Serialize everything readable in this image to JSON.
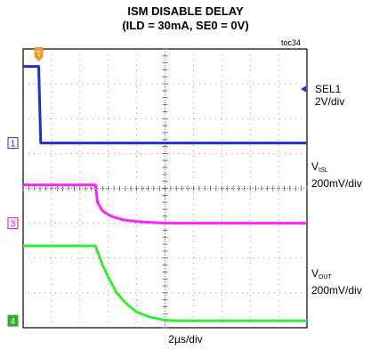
{
  "title_line1": "ISM DISABLE DELAY",
  "title_line2": "(ILD = 30mA, SE0 = 0V)",
  "figure_id": "toc34",
  "x_scale_label": "2µs/div",
  "trigger_marker": "T",
  "channel_markers": [
    {
      "label": "1",
      "color": "#2a2ad8"
    },
    {
      "label": "3",
      "color": "#e200e2"
    },
    {
      "label": "4",
      "color": "#2ab02a"
    }
  ],
  "trace_labels": {
    "sel1": {
      "name": "SEL1",
      "scale": "2V/div"
    },
    "visl": {
      "name": "V",
      "sub": "ISL",
      "scale": "200mV/div"
    },
    "vout": {
      "name": "V",
      "sub": "OUT",
      "scale": "200mV/div"
    }
  },
  "chart_data": {
    "type": "line",
    "x_unit": "div",
    "y_unit": "div",
    "xlim": [
      0,
      10
    ],
    "ylim": [
      0,
      8
    ],
    "grid": true,
    "series": [
      {
        "name": "SEL1",
        "color": "#1f2fd0",
        "x": [
          0,
          0.55,
          0.58,
          0.62,
          10
        ],
        "y": [
          7.5,
          7.5,
          6.5,
          5.3,
          5.3
        ]
      },
      {
        "name": "VISL",
        "color": "#ff22ff",
        "x": [
          0,
          2.55,
          2.62,
          2.8,
          3.1,
          3.5,
          4.0,
          4.5,
          5.0,
          10
        ],
        "y": [
          4.1,
          4.1,
          3.6,
          3.35,
          3.2,
          3.1,
          3.05,
          3.02,
          3.0,
          3.0
        ]
      },
      {
        "name": "VOUT",
        "color": "#33ee33",
        "x": [
          0,
          2.55,
          2.8,
          3.0,
          3.3,
          3.6,
          4.0,
          4.5,
          5.0,
          5.5,
          6.0,
          10
        ],
        "y": [
          2.35,
          2.35,
          1.8,
          1.45,
          1.0,
          0.72,
          0.45,
          0.3,
          0.22,
          0.2,
          0.2,
          0.2
        ]
      }
    ]
  }
}
